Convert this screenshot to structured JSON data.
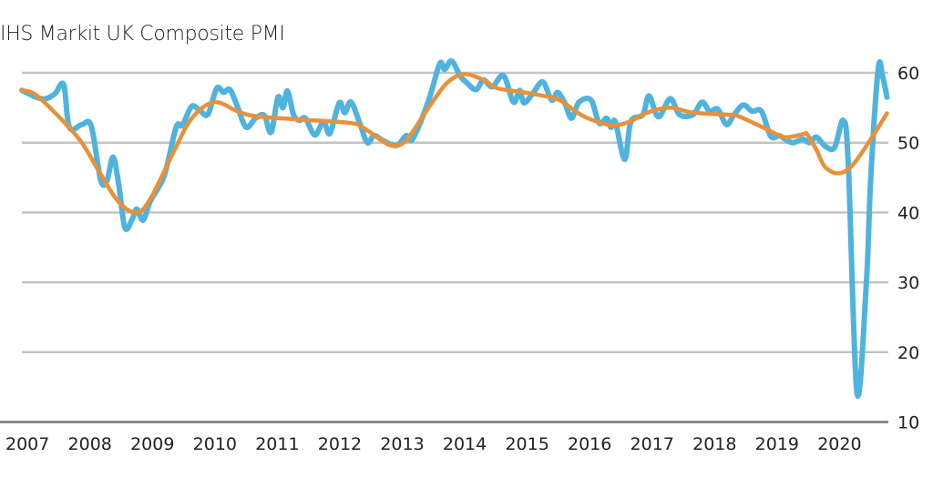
{
  "chart_data": {
    "type": "line",
    "title": "IHS Markit UK Composite PMI",
    "xlabel": "",
    "ylabel": "",
    "xlim": [
      2007.0,
      2020.93
    ],
    "ylim": [
      10,
      60
    ],
    "grid": true,
    "y_axis_side": "right",
    "x_ticks": [
      "2007",
      "2008",
      "2009",
      "2010",
      "2011",
      "2012",
      "2013",
      "2014",
      "2015",
      "2016",
      "2017",
      "2018",
      "2019",
      "2020"
    ],
    "y_ticks": [
      10,
      20,
      30,
      40,
      50,
      60
    ],
    "colors": {
      "pmi": "#4fb3de",
      "trend": "#e8913a",
      "grid": "#c4c4c4",
      "axis": "#8a8a8a"
    },
    "series": [
      {
        "key": "pmi",
        "x": [
          2007.0,
          2007.23,
          2007.38,
          2007.53,
          2007.67,
          2007.76,
          2007.96,
          2008.11,
          2008.26,
          2008.36,
          2008.46,
          2008.55,
          2008.65,
          2008.77,
          2008.84,
          2008.94,
          2009.06,
          2009.28,
          2009.47,
          2009.57,
          2009.72,
          2009.86,
          2009.98,
          2010.12,
          2010.23,
          2010.33,
          2010.45,
          2010.59,
          2010.74,
          2010.88,
          2010.99,
          2011.1,
          2011.18,
          2011.25,
          2011.35,
          2011.44,
          2011.54,
          2011.69,
          2011.83,
          2011.93,
          2012.08,
          2012.17,
          2012.27,
          2012.42,
          2012.53,
          2012.64,
          2012.78,
          2013.0,
          2013.15,
          2013.26,
          2013.51,
          2013.69,
          2013.77,
          2013.88,
          2014.02,
          2014.12,
          2014.27,
          2014.39,
          2014.53,
          2014.71,
          2014.87,
          2014.97,
          2015.04,
          2015.19,
          2015.34,
          2015.48,
          2015.58,
          2015.7,
          2015.8,
          2015.92,
          2016.11,
          2016.24,
          2016.36,
          2016.43,
          2016.5,
          2016.65,
          2016.75,
          2016.94,
          2017.04,
          2017.19,
          2017.38,
          2017.53,
          2017.74,
          2017.89,
          2018.01,
          2018.14,
          2018.28,
          2018.4,
          2018.55,
          2018.69,
          2018.84,
          2018.99,
          2019.13,
          2019.25,
          2019.35,
          2019.5,
          2019.61,
          2019.72,
          2019.86,
          2020.01,
          2020.15,
          2020.23,
          2020.37,
          2020.52,
          2020.59,
          2020.71,
          2020.78,
          2020.85
        ],
        "y": [
          57.5,
          56.5,
          56.3,
          57.0,
          58.3,
          52.2,
          52.6,
          52.4,
          44.7,
          44.5,
          47.9,
          44.0,
          37.8,
          39.1,
          40.5,
          38.9,
          41.7,
          45.3,
          52.2,
          52.5,
          55.2,
          54.5,
          54.1,
          57.8,
          57.2,
          57.6,
          55.2,
          52.2,
          53.5,
          53.9,
          51.5,
          56.5,
          55.0,
          57.4,
          54.0,
          53.2,
          53.5,
          51.1,
          53.0,
          51.3,
          55.7,
          54.3,
          55.8,
          52.5,
          50.0,
          51.0,
          50.3,
          49.6,
          51.0,
          50.6,
          56.0,
          61.3,
          60.5,
          61.7,
          59.5,
          58.6,
          57.6,
          59.0,
          58.0,
          59.6,
          55.8,
          57.5,
          55.7,
          57.2,
          58.7,
          56.1,
          57.2,
          55.5,
          53.5,
          55.8,
          56.1,
          52.8,
          53.5,
          52.2,
          53.0,
          47.6,
          53.0,
          54.0,
          56.7,
          53.7,
          56.3,
          54.0,
          54.0,
          55.8,
          54.5,
          54.8,
          52.6,
          54.0,
          55.4,
          54.5,
          54.5,
          50.9,
          51.0,
          50.3,
          50.0,
          50.5,
          50.0,
          50.8,
          49.5,
          49.3,
          53.2,
          47.0,
          14.1,
          30.0,
          45.0,
          60.6,
          59.5,
          56.5
        ]
      },
      {
        "key": "trend",
        "x": [
          2007.0,
          2007.23,
          2007.67,
          2007.96,
          2008.26,
          2008.55,
          2008.84,
          2009.06,
          2009.42,
          2009.72,
          2010.08,
          2010.45,
          2010.74,
          2011.47,
          2012.27,
          2012.49,
          2012.78,
          2012.93,
          2013.15,
          2013.51,
          2013.8,
          2014.07,
          2014.39,
          2014.61,
          2015.04,
          2015.41,
          2015.63,
          2015.99,
          2016.43,
          2016.72,
          2017.01,
          2017.38,
          2017.74,
          2018.33,
          2018.47,
          2018.91,
          2019.2,
          2019.5,
          2019.57,
          2019.72,
          2019.86,
          2020.08,
          2020.3,
          2020.59,
          2020.85
        ],
        "y": [
          57.5,
          56.8,
          53.0,
          50.0,
          45.5,
          41.5,
          40.0,
          42.0,
          48.5,
          53.5,
          55.8,
          54.5,
          53.8,
          53.3,
          52.8,
          52.0,
          50.2,
          49.6,
          50.3,
          55.0,
          58.5,
          59.8,
          59.0,
          57.8,
          57.2,
          56.6,
          56.0,
          53.8,
          52.5,
          53.0,
          54.3,
          55.0,
          54.3,
          54.0,
          53.8,
          52.0,
          50.8,
          51.2,
          51.2,
          49.0,
          46.5,
          45.6,
          46.8,
          50.5,
          54.2
        ]
      }
    ]
  }
}
